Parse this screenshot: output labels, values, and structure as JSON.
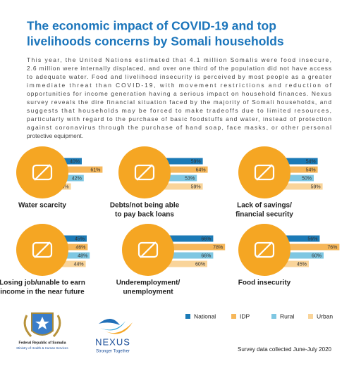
{
  "header": {
    "title": [
      "The economic impact of COVID-19 and top",
      "livelihoods concerns by Somali households"
    ]
  },
  "intro": [
    "This year, the United Nations estimated that  4.1 million Somalis were food insecure,",
    "2.6 million were internally displaced, and over one third of the population did not have access",
    "to  adequate water. Food and livelihood insecurity is perceived by most  people as a greater",
    "immediate threat than COVID-19, with movement restrictions and reduction of",
    "opportunities for income generation  having a serious impact on household finances. Nexus",
    "survey reveals the dire financial situation faced by the majority of Somali  households, and",
    "suggests that households may be forced to make  tradeoffs due to limited resources,",
    "particularly with regard to the purchase of basic foodstuffs and water, instead of protection",
    "against coronavirus through the purchase of hand soap, face masks, or other personal",
    "protective equipment."
  ],
  "legend": [
    {
      "name": "National",
      "color": "#1b7ab6"
    },
    {
      "name": "IDP",
      "color": "#f6b75a"
    },
    {
      "name": "Rural",
      "color": "#7fc7e2"
    },
    {
      "name": "Urban",
      "color": "#f9d49a"
    }
  ],
  "chart_data": [
    {
      "type": "bar",
      "title": [
        "Water scarcity"
      ],
      "values": [
        40,
        61,
        42,
        29
      ],
      "value_labels": [
        "40%",
        "61%",
        "42%",
        "29%"
      ]
    },
    {
      "type": "bar",
      "title": [
        "Debts/not being able",
        "to pay back loans"
      ],
      "values": [
        59,
        64,
        53,
        59
      ],
      "value_labels": [
        "59%",
        "64%",
        "53%",
        "59%"
      ]
    },
    {
      "type": "bar",
      "title": [
        "Lack of savings/",
        "financial security"
      ],
      "values": [
        54,
        54,
        50,
        59
      ],
      "value_labels": [
        "54%",
        "54%",
        "50%",
        "59%"
      ]
    },
    {
      "type": "bar",
      "title": [
        "Losing job/unable to earn",
        "income in the near future"
      ],
      "values": [
        45,
        46,
        48,
        44
      ],
      "value_labels": [
        "45%",
        "46%",
        "48%",
        "44%"
      ]
    },
    {
      "type": "bar",
      "title": [
        "Underemployment/",
        "unemployment"
      ],
      "values": [
        66,
        78,
        66,
        60
      ],
      "value_labels": [
        "66%",
        "78%",
        "66%",
        "60%"
      ]
    },
    {
      "type": "bar",
      "title": [
        "Food insecurity"
      ],
      "values": [
        56,
        76,
        60,
        45
      ],
      "value_labels": [
        "56%",
        "76%",
        "60%",
        "45%"
      ]
    }
  ],
  "footer": {
    "ministry": [
      "Federal Republic of Somalia",
      "Ministry of Health & Human Services"
    ],
    "brand": "NEXUS",
    "tagline": "Stronger Together",
    "note": "Survey data collected June-July 2020"
  }
}
